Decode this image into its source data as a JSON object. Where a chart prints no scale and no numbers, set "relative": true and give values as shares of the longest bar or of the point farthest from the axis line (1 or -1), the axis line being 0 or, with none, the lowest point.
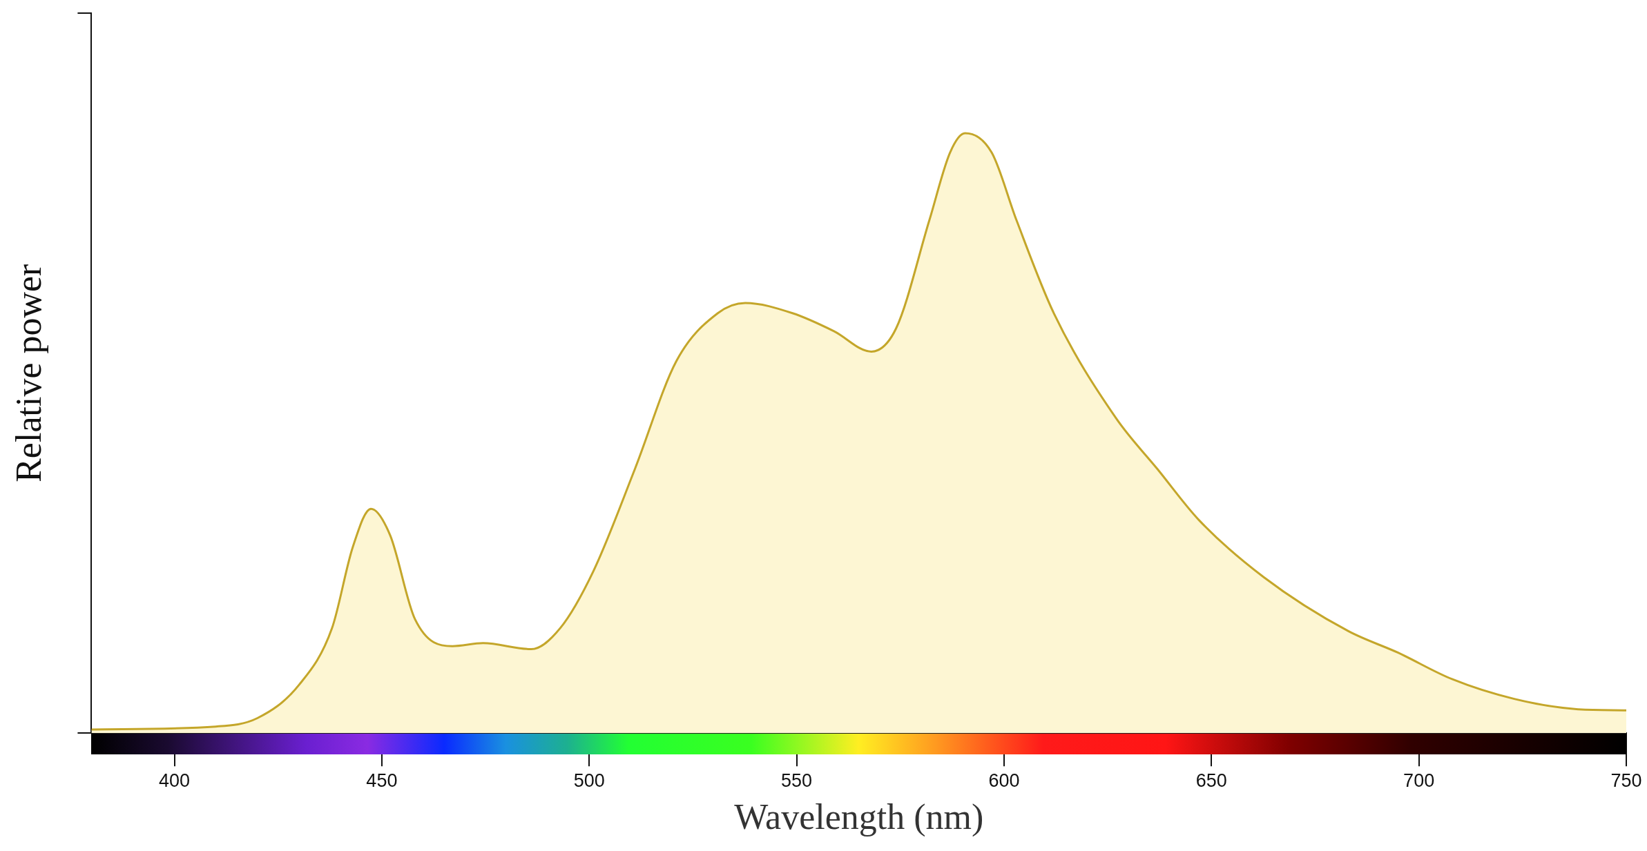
{
  "chart_data": {
    "type": "area",
    "xlabel": "Wavelength (nm)",
    "ylabel": "Relative power",
    "relative": true,
    "xlim": [
      380,
      750
    ],
    "xticks": [
      400,
      450,
      500,
      550,
      600,
      650,
      700,
      750
    ],
    "grid": false,
    "legend": false,
    "marker": "none",
    "series": [
      {
        "color": "#c4a62a",
        "x": [
          380,
          410,
          420,
          430,
          438,
          443,
          447.4,
          452,
          458,
          467,
          474.4,
          486,
          493,
          501,
          511,
          521,
          531,
          537.6,
          549,
          559,
          568,
          574,
          582,
          587,
          590.6,
          597,
          603,
          612,
          627,
          637,
          647,
          662.6,
          683,
          695,
          708,
          723,
          738,
          750
        ],
        "values": [
          0.006,
          0.011,
          0.025,
          0.08,
          0.175,
          0.31,
          0.374,
          0.33,
          0.19,
          0.145,
          0.15,
          0.14,
          0.175,
          0.27,
          0.44,
          0.62,
          0.7,
          0.717,
          0.7,
          0.67,
          0.636,
          0.675,
          0.855,
          0.968,
          1,
          0.968,
          0.855,
          0.7,
          0.525,
          0.44,
          0.355,
          0.26,
          0.17,
          0.134,
          0.09,
          0.057,
          0.04,
          0.038
        ]
      }
    ]
  }
}
